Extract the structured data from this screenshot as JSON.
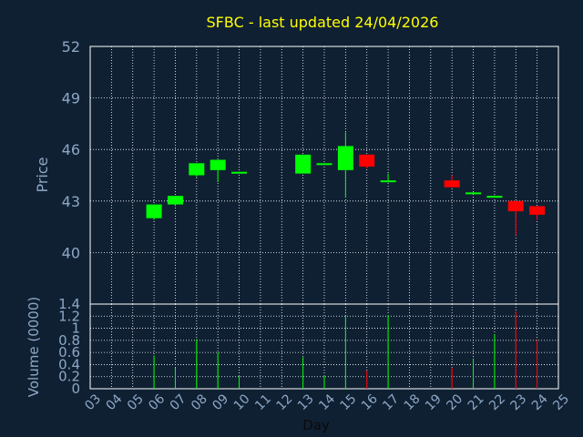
{
  "colors": {
    "background": "#0f2033",
    "up": "#00ff00",
    "down": "#ff0000",
    "title": "#ffff00",
    "axis_text": "#8da7c4",
    "grid": "#ffffff"
  },
  "chart_data": [
    {
      "type": "candlestick",
      "title": "SFBC - last updated 24/04/2026",
      "ylabel": "Price",
      "ylim": [
        37,
        52
      ],
      "yticks": [
        40,
        43,
        46,
        49,
        52
      ],
      "x_ticks": [
        "03",
        "04",
        "05",
        "06",
        "07",
        "08",
        "09",
        "10",
        "11",
        "12",
        "13",
        "14",
        "15",
        "16",
        "17",
        "18",
        "19",
        "20",
        "21",
        "22",
        "23",
        "24",
        "25"
      ],
      "grid": true,
      "candles": [
        {
          "day": "06",
          "open": 42.0,
          "close": 42.8,
          "high": 42.8,
          "low": 41.9
        },
        {
          "day": "07",
          "open": 42.8,
          "close": 43.3,
          "high": 43.3,
          "low": 42.7
        },
        {
          "day": "08",
          "open": 44.5,
          "close": 45.2,
          "high": 45.2,
          "low": 44.4
        },
        {
          "day": "09",
          "open": 44.8,
          "close": 45.4,
          "high": 45.4,
          "low": 44.1
        },
        {
          "day": "10",
          "open": 44.6,
          "close": 44.7,
          "high": 44.7,
          "low": 44.6
        },
        {
          "day": "13",
          "open": 44.6,
          "close": 45.7,
          "high": 45.7,
          "low": 44.6
        },
        {
          "day": "14",
          "open": 45.2,
          "close": 45.2,
          "high": 45.2,
          "low": 45.2
        },
        {
          "day": "15",
          "open": 44.8,
          "close": 46.2,
          "high": 47.0,
          "low": 43.2
        },
        {
          "day": "16",
          "open": 45.7,
          "close": 45.0,
          "high": 45.7,
          "low": 44.9
        },
        {
          "day": "17",
          "open": 44.1,
          "close": 44.2,
          "high": 44.6,
          "low": 44.1
        },
        {
          "day": "20",
          "open": 44.2,
          "close": 43.8,
          "high": 44.5,
          "low": 43.8
        },
        {
          "day": "21",
          "open": 43.5,
          "close": 43.5,
          "high": 43.5,
          "low": 43.4
        },
        {
          "day": "22",
          "open": 43.2,
          "close": 43.3,
          "high": 43.3,
          "low": 43.2
        },
        {
          "day": "23",
          "open": 43.0,
          "close": 42.4,
          "high": 43.0,
          "low": 41.0
        },
        {
          "day": "24",
          "open": 42.7,
          "close": 42.2,
          "high": 42.7,
          "low": 41.9
        }
      ]
    },
    {
      "type": "bar",
      "ylabel": "Volume (0000)",
      "xlabel": "Day",
      "ylim": [
        0,
        1.4
      ],
      "yticks": [
        "0",
        "0.2",
        "0.4",
        "0.6",
        "0.8",
        "1",
        "1.2",
        "1.4"
      ],
      "ytick_values": [
        0,
        0.2,
        0.4,
        0.6,
        0.8,
        1.0,
        1.2,
        1.4
      ],
      "x_ticks": [
        "03",
        "04",
        "05",
        "06",
        "07",
        "08",
        "09",
        "10",
        "11",
        "12",
        "13",
        "14",
        "15",
        "16",
        "17",
        "18",
        "19",
        "20",
        "21",
        "22",
        "23",
        "24",
        "25"
      ],
      "grid": true,
      "bars": [
        {
          "day": "06",
          "value": 0.55,
          "direction": "up"
        },
        {
          "day": "07",
          "value": 0.35,
          "direction": "up"
        },
        {
          "day": "08",
          "value": 0.82,
          "direction": "up"
        },
        {
          "day": "09",
          "value": 0.6,
          "direction": "up"
        },
        {
          "day": "10",
          "value": 0.22,
          "direction": "up"
        },
        {
          "day": "13",
          "value": 0.52,
          "direction": "up"
        },
        {
          "day": "14",
          "value": 0.22,
          "direction": "up"
        },
        {
          "day": "15",
          "value": 1.2,
          "direction": "up"
        },
        {
          "day": "16",
          "value": 0.3,
          "direction": "down"
        },
        {
          "day": "17",
          "value": 1.22,
          "direction": "up"
        },
        {
          "day": "20",
          "value": 0.35,
          "direction": "down"
        },
        {
          "day": "21",
          "value": 0.5,
          "direction": "up"
        },
        {
          "day": "22",
          "value": 0.9,
          "direction": "up"
        },
        {
          "day": "23",
          "value": 1.28,
          "direction": "down"
        },
        {
          "day": "24",
          "value": 0.82,
          "direction": "down"
        }
      ]
    }
  ]
}
